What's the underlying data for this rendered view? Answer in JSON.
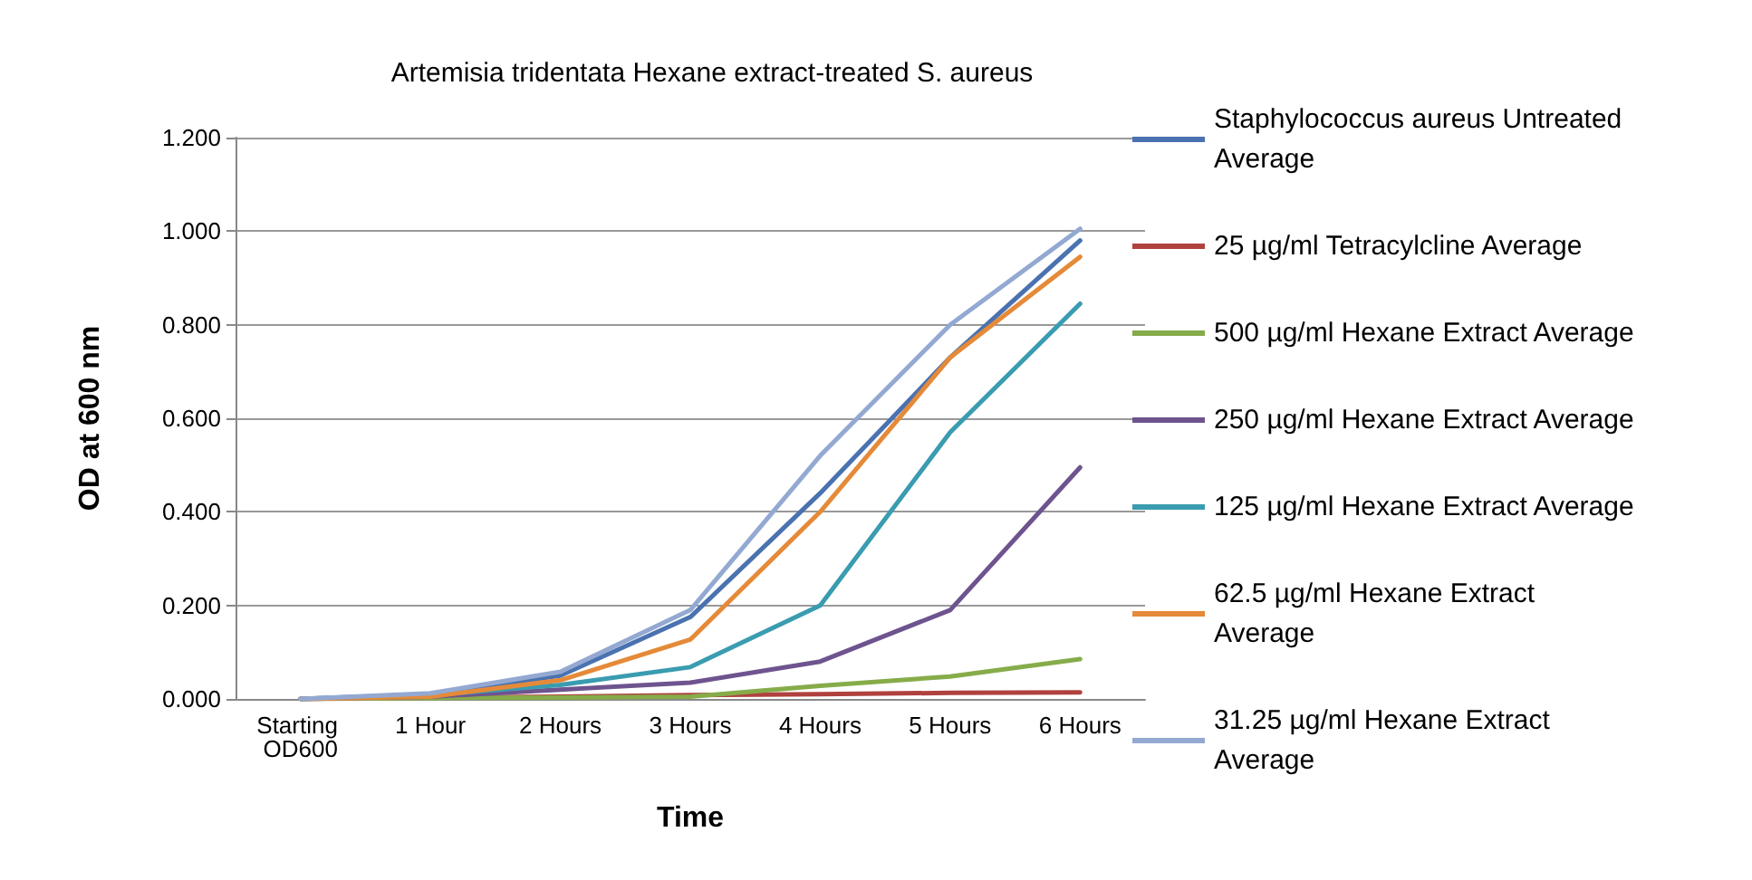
{
  "chart_data": {
    "type": "line",
    "title": "Artemisia tridentata Hexane extract-treated S. aureus",
    "xlabel": "Time",
    "ylabel": "OD at 600 nm",
    "categories": [
      "Starting OD600",
      "1 Hour",
      "2 Hours",
      "3 Hours",
      "4 Hours",
      "5 Hours",
      "6 Hours"
    ],
    "series": [
      {
        "name": "Staphylococcus aureus Untreated Average",
        "color": "#4a72b0",
        "values": [
          0,
          0.01,
          0.05,
          0.175,
          0.44,
          0.73,
          0.98
        ]
      },
      {
        "name": "25 µg/ml Tetracylcline Average",
        "color": "#b0413e",
        "values": [
          0,
          0.003,
          0.005,
          0.008,
          0.01,
          0.013,
          0.014
        ]
      },
      {
        "name": "500 µg/ml Hexane Extract Average",
        "color": "#86ac4a",
        "values": [
          0,
          0.002,
          0.003,
          0.005,
          0.028,
          0.048,
          0.085
        ]
      },
      {
        "name": "250 µg/ml Hexane Extract Average",
        "color": "#6e548f",
        "values": [
          0,
          0.005,
          0.02,
          0.035,
          0.08,
          0.19,
          0.495
        ]
      },
      {
        "name": "125 µg/ml Hexane Extract Average",
        "color": "#3a9cb0",
        "values": [
          0,
          0.008,
          0.03,
          0.068,
          0.2,
          0.57,
          0.845
        ]
      },
      {
        "name": "62.5 µg/ml Hexane Extract Average",
        "color": "#e58a38",
        "values": [
          0,
          0.005,
          0.04,
          0.127,
          0.4,
          0.73,
          0.945
        ]
      },
      {
        "name": "31.25 µg/ml Hexane Extract Average",
        "color": "#93a9d2",
        "values": [
          0,
          0.012,
          0.058,
          0.19,
          0.52,
          0.8,
          1.005
        ]
      }
    ],
    "ylim": [
      0,
      1.2
    ],
    "yticks": [
      {
        "value": 0,
        "label": "0.000"
      },
      {
        "value": 0.2,
        "label": "0.200"
      },
      {
        "value": 0.4,
        "label": "0.400"
      },
      {
        "value": 0.6,
        "label": "0.600"
      },
      {
        "value": 0.8,
        "label": "0.800"
      },
      {
        "value": 1,
        "label": "1.000"
      },
      {
        "value": 1.2,
        "label": "1.200"
      }
    ],
    "grid": "y",
    "legend": "right",
    "marker": "none",
    "line_style": "solid"
  }
}
